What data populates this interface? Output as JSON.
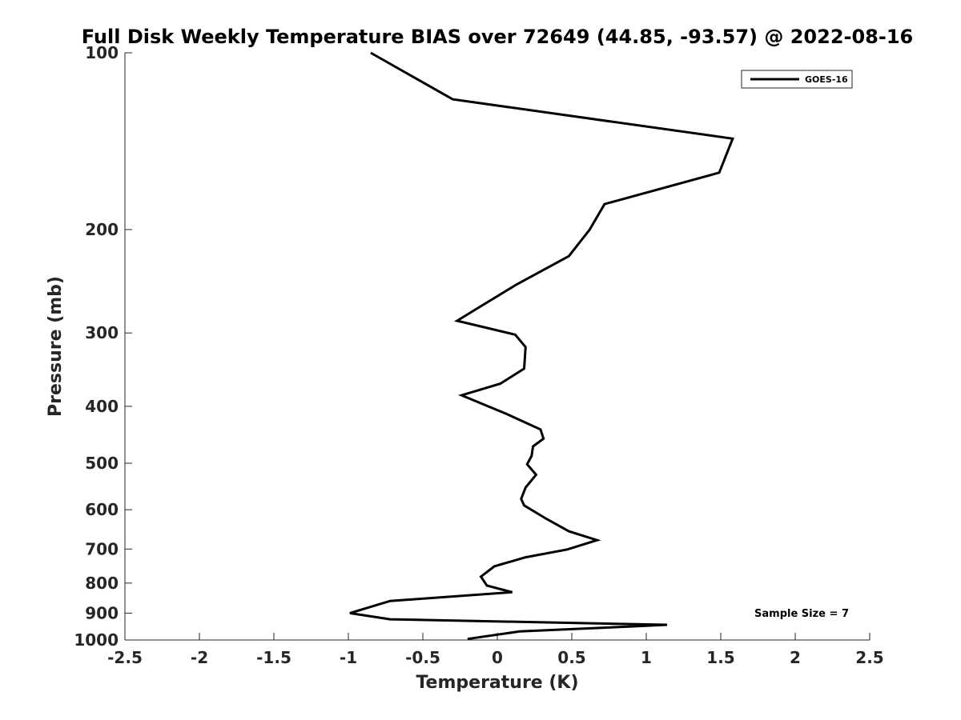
{
  "chart_data": {
    "type": "line",
    "title": "Full Disk Weekly Temperature BIAS over 72649 (44.85, -93.57) @ 2022-08-16",
    "xlabel": "Temperature (K)",
    "ylabel": "Pressure (mb)",
    "xlim": [
      -2.5,
      2.5
    ],
    "ylim": [
      100,
      1000
    ],
    "y_scale": "log",
    "y_reversed": true,
    "x_ticks": [
      "-2.5",
      "-2",
      "-1.5",
      "-1",
      "-0.5",
      "0",
      "0.5",
      "1",
      "1.5",
      "2",
      "2.5"
    ],
    "x_tick_values": [
      -2.5,
      -2,
      -1.5,
      -1,
      -0.5,
      0,
      0.5,
      1,
      1.5,
      2,
      2.5
    ],
    "y_ticks": [
      "100",
      "200",
      "300",
      "400",
      "500",
      "600",
      "700",
      "800",
      "900",
      "1000"
    ],
    "y_tick_values": [
      100,
      200,
      300,
      400,
      500,
      600,
      700,
      800,
      900,
      1000
    ],
    "grid": false,
    "legend_position": "top-right",
    "series": [
      {
        "name": "GOES-16",
        "color": "#000000",
        "points": [
          [
            -0.85,
            100
          ],
          [
            -0.3,
            120
          ],
          [
            1.58,
            140
          ],
          [
            1.49,
            160
          ],
          [
            0.72,
            181
          ],
          [
            0.62,
            200
          ],
          [
            0.48,
            222
          ],
          [
            0.13,
            248
          ],
          [
            -0.13,
            272
          ],
          [
            -0.27,
            286
          ],
          [
            0.12,
            302
          ],
          [
            0.19,
            317
          ],
          [
            0.18,
            345
          ],
          [
            0.02,
            366
          ],
          [
            -0.24,
            383
          ],
          [
            0.06,
            412
          ],
          [
            0.29,
            438
          ],
          [
            0.31,
            454
          ],
          [
            0.24,
            468
          ],
          [
            0.23,
            486
          ],
          [
            0.2,
            502
          ],
          [
            0.26,
            523
          ],
          [
            0.19,
            550
          ],
          [
            0.16,
            575
          ],
          [
            0.18,
            590
          ],
          [
            0.33,
            622
          ],
          [
            0.48,
            653
          ],
          [
            0.67,
            676
          ],
          [
            0.47,
            701
          ],
          [
            0.19,
            723
          ],
          [
            -0.02,
            749
          ],
          [
            -0.11,
            780
          ],
          [
            -0.07,
            808
          ],
          [
            0.1,
            829
          ],
          [
            -0.72,
            858
          ],
          [
            -0.99,
            900
          ],
          [
            -0.72,
            922
          ],
          [
            1.14,
            942
          ],
          [
            0.88,
            949
          ],
          [
            0.15,
            967
          ],
          [
            -0.2,
            996
          ]
        ]
      }
    ],
    "annotation": "Sample Size = 7"
  }
}
